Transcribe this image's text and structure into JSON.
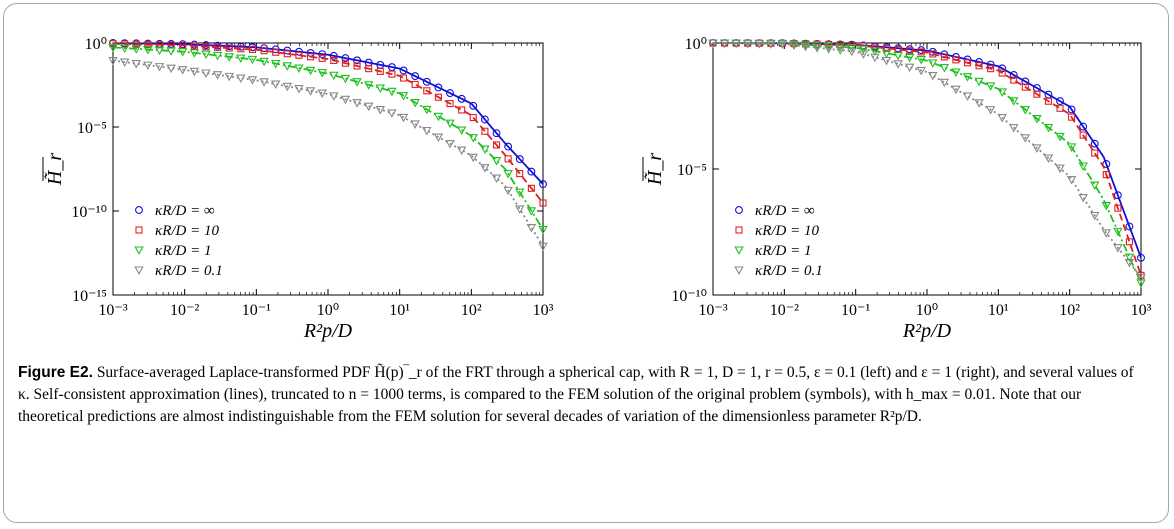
{
  "figure": {
    "label": "Figure E2.",
    "caption": "Surface-averaged Laplace-transformed PDF H̃(p)‾_r of the FRT through a spherical cap, with R = 1, D = 1, r = 0.5, ε = 0.1 (left) and ε = 1 (right), and several values of κ. Self-consistent approximation (lines), truncated to n = 1000 terms, is compared to the FEM solution of the original problem (symbols), with h_max = 0.01. Note that our theoretical predictions are almost indistinguishable from the FEM solution for several decades of variation of the dimensionless parameter R²p/D."
  },
  "chart_data": [
    {
      "type": "line",
      "xlabel": "R²p/D",
      "ylabel": "H̃_r",
      "x_scale": "log",
      "y_scale": "log",
      "xlim": [
        0.001,
        1000
      ],
      "ylim": [
        1e-15,
        1
      ],
      "x_ticks": [
        "10⁻³",
        "10⁻²",
        "10⁻¹",
        "10⁰",
        "10¹",
        "10²",
        "10³"
      ],
      "y_ticks": [
        "10⁰",
        "10⁻⁵",
        "10⁻¹⁰",
        "10⁻¹⁵"
      ],
      "legend_position": "bottom-left",
      "series": [
        {
          "name": "κR/D = ∞",
          "color": "#1010d8",
          "marker": "circle",
          "line": "solid",
          "x": [
            0.001,
            0.01,
            0.1,
            1,
            10,
            100,
            300,
            1000
          ],
          "y": [
            1.0,
            0.85,
            0.55,
            0.2,
            0.03,
            0.00025,
            1e-06,
            4e-09
          ]
        },
        {
          "name": "κR/D = 10",
          "color": "#e02020",
          "marker": "square",
          "line": "dashed",
          "x": [
            0.001,
            0.01,
            0.1,
            1,
            10,
            100,
            300,
            1000
          ],
          "y": [
            0.9,
            0.72,
            0.4,
            0.11,
            0.011,
            5e-05,
            2e-07,
            3e-10
          ]
        },
        {
          "name": "κR/D = 1",
          "color": "#20c020",
          "marker": "triangle-down",
          "line": "dashdot",
          "x": [
            0.001,
            0.01,
            0.1,
            1,
            10,
            100,
            300,
            1000
          ],
          "y": [
            0.55,
            0.3,
            0.1,
            0.015,
            0.001,
            3e-06,
            3e-08,
            8e-12
          ]
        },
        {
          "name": "κR/D = 0.1",
          "color": "#888888",
          "marker": "triangle-down",
          "line": "dotted",
          "x": [
            0.001,
            0.01,
            0.1,
            1,
            10,
            100,
            300,
            1000
          ],
          "y": [
            0.09,
            0.025,
            0.006,
            0.0009,
            5e-05,
            2e-07,
            3e-09,
            8e-13
          ]
        }
      ]
    },
    {
      "type": "line",
      "xlabel": "R²p/D",
      "ylabel": "H̃_r",
      "x_scale": "log",
      "y_scale": "log",
      "xlim": [
        0.001,
        1000
      ],
      "ylim": [
        1e-10,
        1
      ],
      "x_ticks": [
        "10⁻³",
        "10⁻²",
        "10⁻¹",
        "10⁰",
        "10¹",
        "10²",
        "10³"
      ],
      "y_ticks": [
        "10⁰",
        "10⁻⁵",
        "10⁻¹⁰"
      ],
      "legend_position": "bottom-left",
      "series": [
        {
          "name": "κR/D = ∞",
          "color": "#1010d8",
          "marker": "circle",
          "line": "solid",
          "x": [
            0.001,
            0.01,
            0.1,
            1,
            10,
            100,
            300,
            1000
          ],
          "y": [
            1.0,
            0.98,
            0.85,
            0.5,
            0.12,
            0.003,
            3e-05,
            3e-09
          ]
        },
        {
          "name": "κR/D = 10",
          "color": "#e02020",
          "marker": "square",
          "line": "dashed",
          "x": [
            0.001,
            0.01,
            0.1,
            1,
            10,
            100,
            300,
            1000
          ],
          "y": [
            1.0,
            0.97,
            0.82,
            0.42,
            0.08,
            0.0015,
            1.2e-05,
            6e-10
          ]
        },
        {
          "name": "κR/D = 1",
          "color": "#20c020",
          "marker": "triangle-down",
          "line": "dashdot",
          "x": [
            0.001,
            0.01,
            0.1,
            1,
            10,
            100,
            300,
            1000
          ],
          "y": [
            1.0,
            0.95,
            0.65,
            0.2,
            0.015,
            0.0001,
            6e-07,
            3e-10
          ]
        },
        {
          "name": "κR/D = 0.1",
          "color": "#888888",
          "marker": "triangle-down",
          "line": "dotted",
          "x": [
            0.001,
            0.01,
            0.1,
            1,
            10,
            100,
            300,
            1000
          ],
          "y": [
            1.0,
            0.9,
            0.45,
            0.07,
            0.0015,
            5e-06,
            4e-08,
            5e-10
          ]
        }
      ]
    }
  ]
}
